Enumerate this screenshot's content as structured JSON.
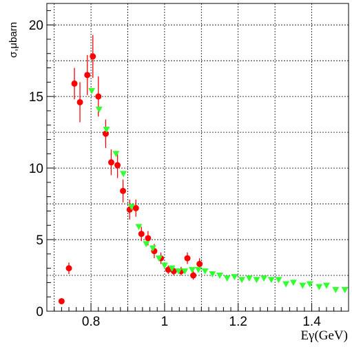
{
  "chart_data": {
    "type": "scatter",
    "xlabel": "Eγ(GeV)",
    "ylabel": "σ,μbarn",
    "xlim": [
      0.68,
      1.5
    ],
    "ylim": [
      0,
      21.5
    ],
    "grid": true,
    "x_ticks": [
      "0.8",
      "1",
      "1.2",
      "1.4"
    ],
    "y_ticks": [
      "0",
      "5",
      "10",
      "15",
      "20"
    ],
    "series": [
      {
        "marker": "circle",
        "color": "#ff0000",
        "points": [
          {
            "x": 0.72,
            "y": 0.7,
            "err": 0.0
          },
          {
            "x": 0.74,
            "y": 3.0,
            "err": 0.4
          },
          {
            "x": 0.755,
            "y": 15.9,
            "err": 1.1
          },
          {
            "x": 0.77,
            "y": 14.6,
            "err": 1.4
          },
          {
            "x": 0.79,
            "y": 16.5,
            "err": 1.4
          },
          {
            "x": 0.805,
            "y": 17.8,
            "err": 1.5
          },
          {
            "x": 0.82,
            "y": 15.0,
            "err": 1.4
          },
          {
            "x": 0.84,
            "y": 12.4,
            "err": 1.0
          },
          {
            "x": 0.855,
            "y": 10.4,
            "err": 0.9
          },
          {
            "x": 0.872,
            "y": 10.2,
            "err": 0.9
          },
          {
            "x": 0.887,
            "y": 8.4,
            "err": 0.8
          },
          {
            "x": 0.905,
            "y": 7.1,
            "err": 0.7
          },
          {
            "x": 0.922,
            "y": 7.2,
            "err": 0.6
          },
          {
            "x": 0.937,
            "y": 5.4,
            "err": 0.5
          },
          {
            "x": 0.955,
            "y": 5.1,
            "err": 0.5
          },
          {
            "x": 0.972,
            "y": 4.2,
            "err": 0.5
          },
          {
            "x": 0.99,
            "y": 3.7,
            "err": 0.4
          },
          {
            "x": 1.01,
            "y": 2.9,
            "err": 0.3
          },
          {
            "x": 1.025,
            "y": 2.8,
            "err": 0.3
          },
          {
            "x": 1.045,
            "y": 2.8,
            "err": 0.3
          },
          {
            "x": 1.062,
            "y": 3.7,
            "err": 0.4
          },
          {
            "x": 1.078,
            "y": 2.5,
            "err": 0.3
          },
          {
            "x": 1.095,
            "y": 3.3,
            "err": 0.4
          }
        ]
      },
      {
        "marker": "triangle-down",
        "color": "#33ff33",
        "points": [
          {
            "x": 0.802,
            "y": 15.4,
            "err": 0.0
          },
          {
            "x": 0.822,
            "y": 14.1,
            "err": 0.0
          },
          {
            "x": 0.842,
            "y": 12.7,
            "err": 0.0
          },
          {
            "x": 0.868,
            "y": 11.0,
            "err": 0.0
          },
          {
            "x": 0.888,
            "y": 9.6,
            "err": 0.0
          },
          {
            "x": 0.91,
            "y": 7.3,
            "err": 0.0
          },
          {
            "x": 0.93,
            "y": 5.9,
            "err": 0.0
          },
          {
            "x": 0.95,
            "y": 4.7,
            "err": 0.0
          },
          {
            "x": 0.968,
            "y": 4.4,
            "err": 0.0
          },
          {
            "x": 0.985,
            "y": 3.7,
            "err": 0.0
          },
          {
            "x": 1.0,
            "y": 3.2,
            "err": 0.0
          },
          {
            "x": 1.02,
            "y": 3.0,
            "err": 0.0
          },
          {
            "x": 1.038,
            "y": 2.8,
            "err": 0.0
          },
          {
            "x": 1.055,
            "y": 2.8,
            "err": 0.0
          },
          {
            "x": 1.075,
            "y": 2.9,
            "err": 0.0
          },
          {
            "x": 1.092,
            "y": 2.9,
            "err": 0.0
          },
          {
            "x": 1.11,
            "y": 2.8,
            "err": 0.0
          },
          {
            "x": 1.13,
            "y": 2.6,
            "err": 0.0
          },
          {
            "x": 1.15,
            "y": 2.5,
            "err": 0.0
          },
          {
            "x": 1.17,
            "y": 2.3,
            "err": 0.0
          },
          {
            "x": 1.19,
            "y": 2.4,
            "err": 0.0
          },
          {
            "x": 1.21,
            "y": 2.2,
            "err": 0.0
          },
          {
            "x": 1.23,
            "y": 2.3,
            "err": 0.0
          },
          {
            "x": 1.25,
            "y": 2.2,
            "err": 0.0
          },
          {
            "x": 1.27,
            "y": 2.3,
            "err": 0.0
          },
          {
            "x": 1.29,
            "y": 2.2,
            "err": 0.0
          },
          {
            "x": 1.31,
            "y": 2.2,
            "err": 0.0
          },
          {
            "x": 1.33,
            "y": 1.9,
            "err": 0.0
          },
          {
            "x": 1.35,
            "y": 2.0,
            "err": 0.0
          },
          {
            "x": 1.375,
            "y": 1.8,
            "err": 0.0
          },
          {
            "x": 1.395,
            "y": 1.9,
            "err": 0.0
          },
          {
            "x": 1.42,
            "y": 1.7,
            "err": 0.0
          },
          {
            "x": 1.44,
            "y": 1.8,
            "err": 0.0
          },
          {
            "x": 1.465,
            "y": 1.5,
            "err": 0.0
          },
          {
            "x": 1.49,
            "y": 1.5,
            "err": 0.0
          }
        ]
      }
    ]
  }
}
